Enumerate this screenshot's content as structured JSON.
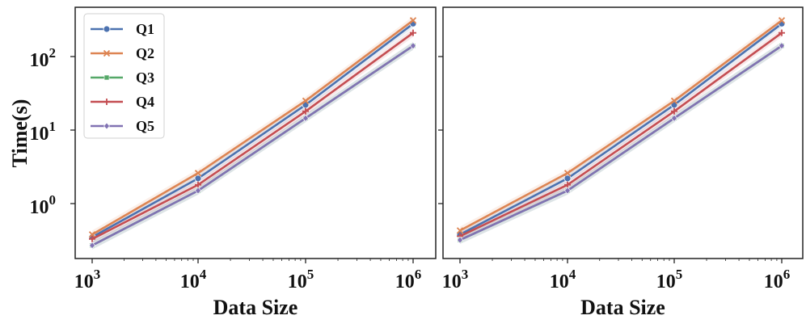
{
  "chart_data": [
    {
      "type": "line",
      "panel": "left",
      "title": "",
      "xlabel": "Data Size",
      "ylabel": "Time(s)",
      "xscale": "log",
      "yscale": "log",
      "x": [
        1000,
        10000,
        100000,
        1000000
      ],
      "xlim": [
        700,
        1400000
      ],
      "ylim": [
        0.2,
        500
      ],
      "xticks": [
        {
          "base": "10",
          "exp": "3"
        },
        {
          "base": "10",
          "exp": "4"
        },
        {
          "base": "10",
          "exp": "5"
        },
        {
          "base": "10",
          "exp": "6"
        }
      ],
      "yticks": [
        {
          "value": 1,
          "base": "10",
          "exp": "0"
        },
        {
          "value": 10,
          "base": "10",
          "exp": "1"
        },
        {
          "value": 100,
          "base": "10",
          "exp": "2"
        }
      ],
      "legend_position": "top-left",
      "series": [
        {
          "name": "Q1",
          "color": "#4c72b0",
          "marker": "circle",
          "values": [
            0.35,
            2.2,
            22,
            280
          ]
        },
        {
          "name": "Q2",
          "color": "#dd8452",
          "marker": "x",
          "values": [
            0.38,
            2.6,
            25,
            310
          ]
        },
        {
          "name": "Q3",
          "color": "#55a868",
          "marker": "square",
          "values": [
            0.27,
            1.5,
            14.5,
            140
          ]
        },
        {
          "name": "Q4",
          "color": "#c44e52",
          "marker": "plus",
          "values": [
            0.33,
            1.8,
            18,
            210
          ]
        },
        {
          "name": "Q5",
          "color": "#8172b3",
          "marker": "diamond",
          "values": [
            0.27,
            1.5,
            14.5,
            140
          ]
        }
      ]
    },
    {
      "type": "line",
      "panel": "right",
      "title": "",
      "xlabel": "Data Size",
      "ylabel": "",
      "xscale": "log",
      "yscale": "log",
      "x": [
        1000,
        10000,
        100000,
        1000000
      ],
      "xlim": [
        700,
        1400000
      ],
      "ylim": [
        0.2,
        500
      ],
      "xticks": [
        {
          "base": "10",
          "exp": "3"
        },
        {
          "base": "10",
          "exp": "4"
        },
        {
          "base": "10",
          "exp": "5"
        },
        {
          "base": "10",
          "exp": "6"
        }
      ],
      "yticks": [],
      "series": [
        {
          "name": "Q1",
          "color": "#4c72b0",
          "marker": "circle",
          "values": [
            0.38,
            2.2,
            22,
            280
          ]
        },
        {
          "name": "Q2",
          "color": "#dd8452",
          "marker": "x",
          "values": [
            0.43,
            2.6,
            25,
            310
          ]
        },
        {
          "name": "Q3",
          "color": "#55a868",
          "marker": "square",
          "values": [
            0.32,
            1.5,
            14.5,
            140
          ]
        },
        {
          "name": "Q4",
          "color": "#c44e52",
          "marker": "plus",
          "values": [
            0.36,
            1.8,
            18,
            210
          ]
        },
        {
          "name": "Q5",
          "color": "#8172b3",
          "marker": "diamond",
          "values": [
            0.32,
            1.5,
            14.5,
            140
          ]
        }
      ]
    }
  ]
}
